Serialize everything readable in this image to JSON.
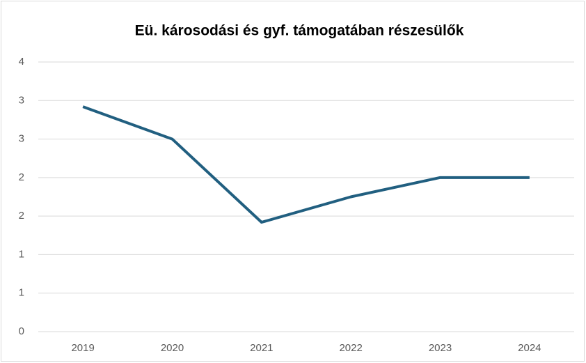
{
  "chart_data": {
    "type": "line",
    "title": "Eü. károsodási és gyf. támogatában részesülők",
    "categories": [
      "2019",
      "2020",
      "2021",
      "2022",
      "2023",
      "2024"
    ],
    "series": [
      {
        "color": "#215f80",
        "values": [
          2.92,
          2.5,
          1.42,
          1.75,
          2.0,
          2.0
        ]
      }
    ],
    "ylim": [
      0,
      3.5
    ],
    "yticks": [
      0,
      {
        "value": 0.5,
        "label": "1"
      },
      1,
      {
        "value": 1.5,
        "label": "2"
      },
      2,
      {
        "value": 2.5,
        "label": "3"
      },
      3,
      {
        "value": 3.5,
        "label": "4"
      }
    ],
    "grid": true
  }
}
